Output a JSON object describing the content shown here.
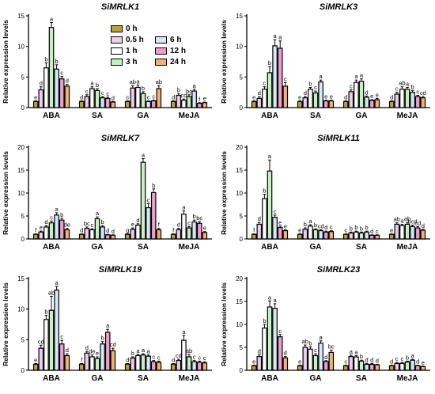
{
  "legend": [
    {
      "label": "0 h",
      "color": "#b9a23a"
    },
    {
      "label": "0.5 h",
      "color": "#e9cfe8"
    },
    {
      "label": "1 h",
      "color": "#ffffff"
    },
    {
      "label": "3 h",
      "color": "#c6f0c4"
    },
    {
      "label": "6 h",
      "color": "#d6e9f7"
    },
    {
      "label": "12 h",
      "color": "#ef9fcf"
    },
    {
      "label": "24 h",
      "color": "#f2b274"
    }
  ],
  "chart_data": [
    {
      "type": "bar",
      "title": "SiMRLK1",
      "ylabel": "Relative expression levels",
      "ylim": [
        0,
        15
      ],
      "yticks": [
        0,
        5,
        10,
        15
      ],
      "categories": [
        "ABA",
        "SA",
        "GA",
        "MeJA"
      ],
      "series": [
        {
          "name": "0 h",
          "values": [
            1.0,
            1.0,
            1.0,
            1.0
          ],
          "errors": [
            0.1,
            0.1,
            0.1,
            0.1
          ],
          "letters": [
            "e",
            "d",
            "c",
            "d"
          ]
        },
        {
          "name": "0.5 h",
          "values": [
            2.9,
            1.8,
            3.2,
            2.0
          ],
          "errors": [
            0.5,
            0.3,
            0.4,
            0.3
          ],
          "letters": [
            "d",
            "c",
            "ab",
            "b"
          ]
        },
        {
          "name": "1 h",
          "values": [
            6.5,
            3.1,
            3.3,
            1.2
          ],
          "errors": [
            0.8,
            0.3,
            0.4,
            0.2
          ],
          "letters": [
            "b",
            "a",
            "a",
            "cd"
          ]
        },
        {
          "name": "3 h",
          "values": [
            13.1,
            2.8,
            2.3,
            1.8
          ],
          "errors": [
            0.8,
            0.3,
            0.3,
            0.3
          ],
          "letters": [
            "a",
            "b",
            "b",
            "bc"
          ]
        },
        {
          "name": "6 h",
          "values": [
            6.3,
            1.6,
            1.0,
            2.7
          ],
          "errors": [
            0.7,
            0.2,
            0.1,
            0.3
          ],
          "letters": [
            "b",
            "c",
            "c",
            "a"
          ]
        },
        {
          "name": "12 h",
          "values": [
            4.7,
            1.5,
            1.1,
            0.7
          ],
          "errors": [
            0.4,
            0.2,
            0.1,
            0.1
          ],
          "letters": [
            "c",
            "c",
            "c",
            "f"
          ]
        },
        {
          "name": "24 h",
          "values": [
            3.5,
            0.9,
            3.1,
            0.8
          ],
          "errors": [
            0.3,
            0.1,
            0.5,
            0.1
          ],
          "letters": [
            "d",
            "d",
            "ab",
            "e"
          ]
        }
      ]
    },
    {
      "type": "bar",
      "title": "SiMRLK3",
      "ylabel": "Relative expression levels",
      "ylim": [
        0,
        15
      ],
      "yticks": [
        0,
        5,
        10,
        15
      ],
      "categories": [
        "ABA",
        "SA",
        "GA",
        "MeJA"
      ],
      "series": [
        {
          "name": "0 h",
          "values": [
            1.0,
            1.0,
            1.0,
            1.0
          ],
          "errors": [
            0.1,
            0.1,
            0.1,
            0.1
          ],
          "letters": [
            "e",
            "e",
            "d",
            "d"
          ]
        },
        {
          "name": "0.5 h",
          "values": [
            1.5,
            1.6,
            2.6,
            2.2
          ],
          "errors": [
            0.3,
            0.2,
            0.3,
            0.3
          ],
          "letters": [
            "d",
            "d",
            "c",
            "c"
          ]
        },
        {
          "name": "1 h",
          "values": [
            3.0,
            3.0,
            4.1,
            3.0
          ],
          "errors": [
            0.4,
            0.3,
            0.4,
            0.4
          ],
          "letters": [
            "c",
            "b",
            "a",
            "ab"
          ]
        },
        {
          "name": "3 h",
          "values": [
            5.7,
            2.4,
            4.3,
            3.0
          ],
          "errors": [
            1.0,
            0.3,
            0.4,
            0.3
          ],
          "letters": [
            "b",
            "c",
            "a",
            "a"
          ]
        },
        {
          "name": "6 h",
          "values": [
            10.1,
            4.2,
            1.7,
            2.5
          ],
          "errors": [
            1.0,
            0.3,
            0.2,
            0.3
          ],
          "letters": [
            "a",
            "a",
            "d",
            "b"
          ]
        },
        {
          "name": "12 h",
          "values": [
            9.7,
            1.1,
            1.2,
            1.8
          ],
          "errors": [
            1.2,
            0.1,
            0.1,
            0.2
          ],
          "letters": [
            "a",
            "e",
            "e",
            "c"
          ]
        },
        {
          "name": "24 h",
          "values": [
            3.5,
            1.1,
            1.3,
            1.6
          ],
          "errors": [
            0.6,
            0.1,
            0.2,
            0.2
          ],
          "letters": [
            "c",
            "e",
            "e",
            "cd"
          ]
        }
      ]
    },
    {
      "type": "bar",
      "title": "SiMRLK7",
      "ylabel": "Relative expression levels",
      "ylim": [
        0,
        20
      ],
      "yticks": [
        0,
        5,
        10,
        15,
        20
      ],
      "categories": [
        "ABA",
        "GA",
        "SA",
        "MeJA"
      ],
      "series": [
        {
          "name": "0 h",
          "values": [
            1.0,
            1.0,
            1.0,
            1.0
          ],
          "errors": [
            0.1,
            0.1,
            0.1,
            0.1
          ],
          "letters": [
            "f",
            "d",
            "g",
            "f"
          ]
        },
        {
          "name": "0.5 h",
          "values": [
            1.5,
            2.3,
            2.1,
            2.0
          ],
          "errors": [
            0.2,
            0.3,
            0.3,
            0.3
          ],
          "letters": [
            "e",
            "bc",
            "e",
            "d"
          ]
        },
        {
          "name": "1 h",
          "values": [
            2.6,
            2.0,
            3.0,
            5.4
          ],
          "errors": [
            0.3,
            0.2,
            0.3,
            0.7
          ],
          "letters": [
            "d",
            "c",
            "d",
            "a"
          ]
        },
        {
          "name": "3 h",
          "values": [
            3.5,
            4.4,
            16.7,
            2.4
          ],
          "errors": [
            0.4,
            0.4,
            0.8,
            0.3
          ],
          "letters": [
            "c",
            "a",
            "a",
            "c"
          ]
        },
        {
          "name": "6 h",
          "values": [
            5.2,
            2.6,
            6.8,
            3.7
          ],
          "errors": [
            0.5,
            0.3,
            0.9,
            0.4
          ],
          "letters": [
            "a",
            "b",
            "c",
            "b"
          ]
        },
        {
          "name": "12 h",
          "values": [
            4.1,
            0.9,
            10.1,
            3.4
          ],
          "errors": [
            0.4,
            0.1,
            0.8,
            0.4
          ],
          "letters": [
            "b",
            "d",
            "b",
            "bc"
          ]
        },
        {
          "name": "24 h",
          "values": [
            2.0,
            0.8,
            2.0,
            1.4
          ],
          "errors": [
            0.3,
            0.1,
            0.3,
            0.2
          ],
          "letters": [
            "de",
            "d",
            "f",
            "e"
          ]
        }
      ]
    },
    {
      "type": "bar",
      "title": "SiMRLK11",
      "ylabel": "Relative expression levels",
      "ylim": [
        0,
        20
      ],
      "yticks": [
        0,
        5,
        10,
        15,
        20
      ],
      "categories": [
        "ABA",
        "GA",
        "SA",
        "MeJA"
      ],
      "series": [
        {
          "name": "0 h",
          "values": [
            1.0,
            1.0,
            1.0,
            1.0
          ],
          "errors": [
            0.1,
            0.1,
            0.1,
            0.1
          ],
          "letters": [
            "f",
            "e",
            "c",
            "e"
          ]
        },
        {
          "name": "0.5 h",
          "values": [
            3.2,
            2.1,
            1.3,
            3.2
          ],
          "errors": [
            0.4,
            0.3,
            0.2,
            0.3
          ],
          "letters": [
            "d",
            "b",
            "b",
            "ab"
          ]
        },
        {
          "name": "1 h",
          "values": [
            8.8,
            2.8,
            1.5,
            2.9
          ],
          "errors": [
            0.9,
            0.3,
            0.2,
            0.3
          ],
          "letters": [
            "b",
            "a",
            "b",
            "a"
          ]
        },
        {
          "name": "3 h",
          "values": [
            14.8,
            2.0,
            1.3,
            3.2
          ],
          "errors": [
            2.4,
            0.2,
            0.2,
            0.4
          ],
          "letters": [
            "a",
            "b",
            "b",
            "ab"
          ]
        },
        {
          "name": "6 h",
          "values": [
            4.7,
            1.8,
            1.5,
            2.7
          ],
          "errors": [
            0.5,
            0.2,
            0.2,
            0.3
          ],
          "letters": [
            "c",
            "cd",
            "b",
            "bcd"
          ]
        },
        {
          "name": "12 h",
          "values": [
            2.5,
            1.5,
            0.8,
            2.4
          ],
          "errors": [
            0.3,
            0.2,
            0.1,
            0.3
          ],
          "letters": [
            "e",
            "d",
            "d",
            "cd"
          ]
        },
        {
          "name": "24 h",
          "values": [
            1.8,
            1.6,
            0.8,
            1.9
          ],
          "errors": [
            0.2,
            0.2,
            0.1,
            0.2
          ],
          "letters": [
            "e",
            "c",
            "c",
            "d"
          ]
        }
      ]
    },
    {
      "type": "bar",
      "title": "SiMRLK19",
      "ylabel": "Relative expression levels",
      "ylim": [
        0,
        15
      ],
      "yticks": [
        0,
        5,
        10,
        15
      ],
      "categories": [
        "ABA",
        "GA",
        "SA",
        "MeJA"
      ],
      "series": [
        {
          "name": "0 h",
          "values": [
            1.0,
            1.0,
            1.0,
            1.0
          ],
          "errors": [
            0.1,
            0.1,
            0.1,
            0.1
          ],
          "letters": [
            "e",
            "f",
            "d",
            "d"
          ]
        },
        {
          "name": "0.5 h",
          "values": [
            3.6,
            2.8,
            2.0,
            1.6
          ],
          "errors": [
            0.5,
            0.3,
            0.2,
            0.2
          ],
          "letters": [
            "cd",
            "d",
            "b",
            "cd"
          ]
        },
        {
          "name": "1 h",
          "values": [
            8.3,
            2.2,
            2.4,
            4.9
          ],
          "errors": [
            0.7,
            0.3,
            0.2,
            0.8
          ],
          "letters": [
            "b",
            "de",
            "a",
            "a"
          ]
        },
        {
          "name": "3 h",
          "values": [
            9.8,
            1.9,
            2.5,
            2.2
          ],
          "errors": [
            2.3,
            0.3,
            0.2,
            0.4
          ],
          "letters": [
            "ab",
            "e",
            "a",
            "ab"
          ]
        },
        {
          "name": "6 h",
          "values": [
            13.1,
            4.3,
            2.3,
            1.4
          ],
          "errors": [
            0.6,
            0.4,
            0.2,
            0.2
          ],
          "letters": [
            "a",
            "b",
            "a",
            "c"
          ]
        },
        {
          "name": "12 h",
          "values": [
            4.3,
            6.2,
            1.4,
            1.3
          ],
          "errors": [
            0.6,
            0.5,
            0.2,
            0.2
          ],
          "letters": [
            "c",
            "a",
            "c",
            "c"
          ]
        },
        {
          "name": "24 h",
          "values": [
            2.4,
            3.2,
            1.3,
            1.2
          ],
          "errors": [
            0.3,
            0.4,
            0.2,
            0.2
          ],
          "letters": [
            "d",
            "cd",
            "c",
            "c"
          ]
        }
      ]
    },
    {
      "type": "bar",
      "title": "SiMRLK23",
      "ylabel": "Relative expression levels",
      "ylim": [
        0,
        20
      ],
      "yticks": [
        0,
        5,
        10,
        15,
        20
      ],
      "categories": [
        "ABA",
        "GA",
        "SA",
        "MeJA"
      ],
      "series": [
        {
          "name": "0 h",
          "values": [
            1.0,
            1.0,
            1.0,
            1.0
          ],
          "errors": [
            0.1,
            0.1,
            0.1,
            0.1
          ],
          "letters": [
            "e",
            "e",
            "c",
            "d"
          ]
        },
        {
          "name": "0.5 h",
          "values": [
            3.0,
            5.0,
            3.0,
            1.5
          ],
          "errors": [
            0.4,
            0.5,
            0.3,
            0.2
          ],
          "letters": [
            "d",
            "ab",
            "a",
            "c"
          ]
        },
        {
          "name": "1 h",
          "values": [
            9.2,
            4.6,
            2.9,
            1.5
          ],
          "errors": [
            0.8,
            0.5,
            0.3,
            0.2
          ],
          "letters": [
            "b",
            "b",
            "a",
            "c"
          ]
        },
        {
          "name": "3 h",
          "values": [
            13.8,
            3.2,
            2.0,
            1.8
          ],
          "errors": [
            1.3,
            0.4,
            0.2,
            0.2
          ],
          "letters": [
            "a",
            "c",
            "b",
            "b"
          ]
        },
        {
          "name": "6 h",
          "values": [
            13.5,
            5.9,
            1.3,
            2.2
          ],
          "errors": [
            1.0,
            0.5,
            0.2,
            0.2
          ],
          "letters": [
            "a",
            "a",
            "d",
            "a"
          ]
        },
        {
          "name": "12 h",
          "values": [
            7.3,
            1.9,
            1.3,
            1.0
          ],
          "errors": [
            0.5,
            0.2,
            0.2,
            0.1
          ],
          "letters": [
            "c",
            "d",
            "d",
            "d"
          ]
        },
        {
          "name": "24 h",
          "values": [
            2.7,
            3.9,
            1.2,
            0.8
          ],
          "errors": [
            0.3,
            0.5,
            0.1,
            0.1
          ],
          "letters": [
            "d",
            "bc",
            "d",
            "e"
          ]
        }
      ]
    }
  ]
}
